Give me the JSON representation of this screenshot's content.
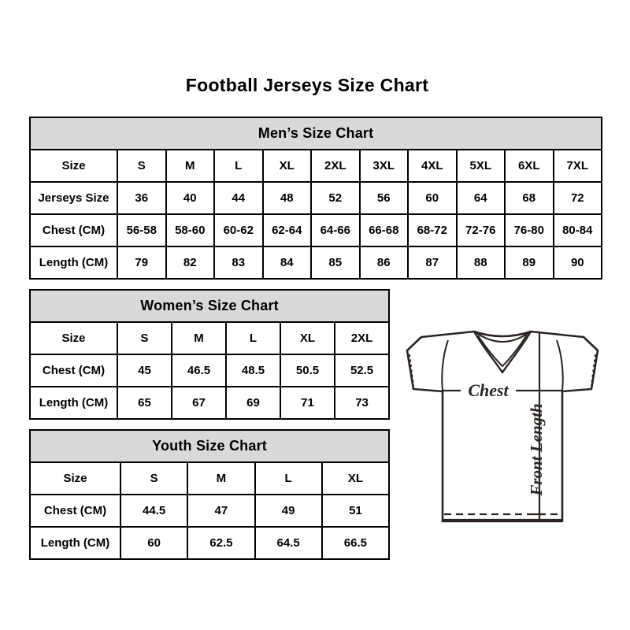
{
  "page": {
    "title": "Football Jerseys Size Chart"
  },
  "colors": {
    "header_bg": "#d9d9d9",
    "border": "#000000",
    "text": "#000000",
    "diagram_line": "#2b2422"
  },
  "tables": {
    "mens": {
      "title": "Men’s Size Chart",
      "columns": [
        "Size",
        "S",
        "M",
        "L",
        "XL",
        "2XL",
        "3XL",
        "4XL",
        "5XL",
        "6XL",
        "7XL"
      ],
      "rows": [
        {
          "label": "Jerseys Size",
          "values": [
            "36",
            "40",
            "44",
            "48",
            "52",
            "56",
            "60",
            "64",
            "68",
            "72"
          ]
        },
        {
          "label": "Chest (CM)",
          "values": [
            "56-58",
            "58-60",
            "60-62",
            "62-64",
            "64-66",
            "66-68",
            "68-72",
            "72-76",
            "76-80",
            "80-84"
          ]
        },
        {
          "label": "Length (CM)",
          "values": [
            "79",
            "82",
            "83",
            "84",
            "85",
            "86",
            "87",
            "88",
            "89",
            "90"
          ]
        }
      ]
    },
    "womens": {
      "title": "Women’s Size Chart",
      "columns": [
        "Size",
        "S",
        "M",
        "L",
        "XL",
        "2XL"
      ],
      "rows": [
        {
          "label": "Chest (CM)",
          "values": [
            "45",
            "46.5",
            "48.5",
            "50.5",
            "52.5"
          ]
        },
        {
          "label": "Length (CM)",
          "values": [
            "65",
            "67",
            "69",
            "71",
            "73"
          ]
        }
      ]
    },
    "youth": {
      "title": "Youth Size Chart",
      "columns": [
        "Size",
        "S",
        "M",
        "L",
        "XL"
      ],
      "rows": [
        {
          "label": "Chest (CM)",
          "values": [
            "44.5",
            "47",
            "49",
            "51"
          ]
        },
        {
          "label": "Length (CM)",
          "values": [
            "60",
            "62.5",
            "64.5",
            "66.5"
          ]
        }
      ]
    }
  },
  "diagram": {
    "chest_label": "Chest",
    "front_length_label": "Front Length"
  }
}
